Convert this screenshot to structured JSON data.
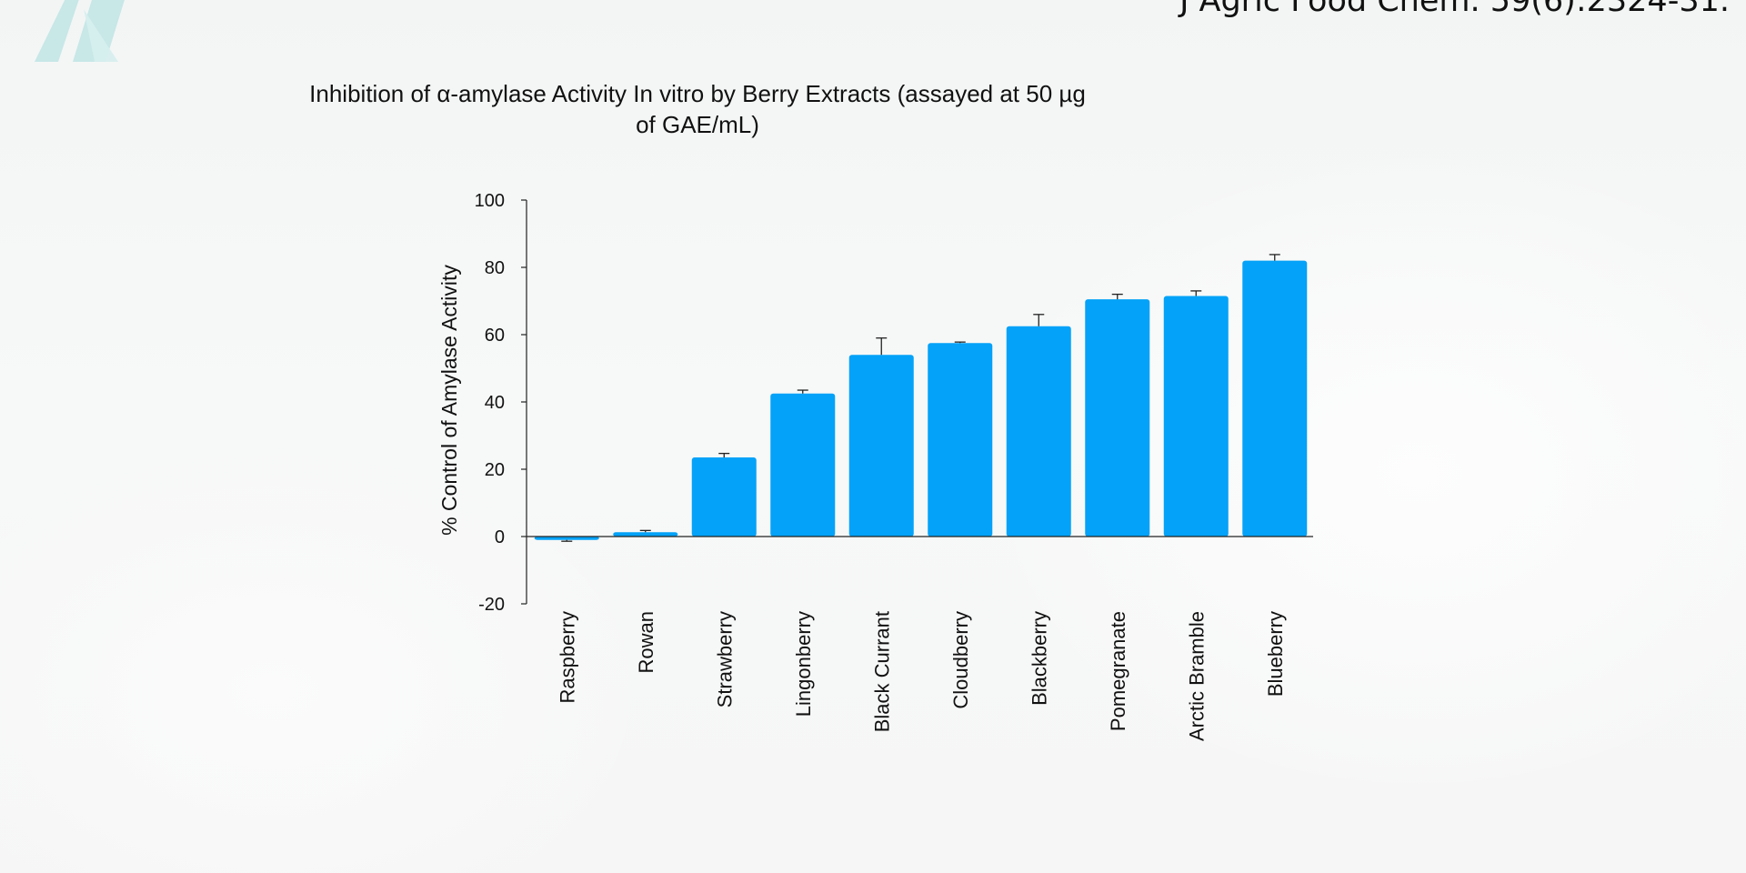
{
  "citation": "J Agric Food Chem. 59(6):2324-31.",
  "chart_data": {
    "type": "bar",
    "title": "Inhibition of α-amylase Activity In vitro by Berry Extracts (assayed at 50 µg of GAE/mL)",
    "xlabel": "",
    "ylabel": "% Control of Amylase Activity",
    "ylim": [
      -20,
      100
    ],
    "yticks": [
      "100",
      "80",
      "60",
      "40",
      "20",
      "0",
      "-20"
    ],
    "categories": [
      "Raspberry",
      "Rowan",
      "Strawberry",
      "Lingonberry",
      "Black Currant",
      "Cloudberry",
      "Blackberry",
      "Pomegranate",
      "Arctic Bramble",
      "Blueberry"
    ],
    "values": [
      -1,
      1.3,
      23.5,
      42.5,
      54,
      57.5,
      62.5,
      70.5,
      71.5,
      82
    ],
    "errors": [
      0.4,
      0.5,
      1.2,
      1,
      5,
      0.3,
      3.5,
      1.5,
      1.5,
      1.8
    ],
    "bar_color": "#04a2f8",
    "grid": false,
    "legend": "none"
  }
}
